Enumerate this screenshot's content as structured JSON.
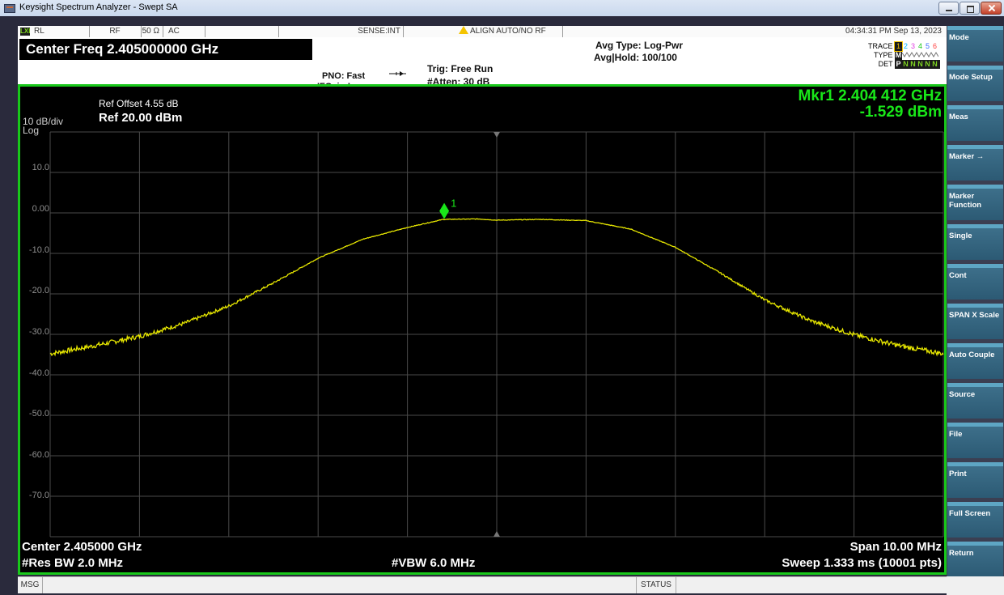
{
  "window": {
    "title": "Keysight Spectrum Analyzer - Swept SA"
  },
  "status_row": {
    "rl_icon": "LXI",
    "rl": "RL",
    "rf": "RF",
    "impedance": "50 Ω",
    "coupling": "AC",
    "sense": "SENSE:INT",
    "align": "ALIGN AUTO/NO RF",
    "datetime": "04:34:31 PM Sep 13, 2023"
  },
  "settings": {
    "center_freq": "Center Freq 2.405000000 GHz",
    "pno": "PNO: Fast",
    "ifgain": "IFGain:Low",
    "trig": "Trig: Free Run",
    "atten": "#Atten: 30 dB",
    "avg_type": "Avg Type: Log-Pwr",
    "avg_hold": "Avg|Hold: 100/100",
    "trace_label": "TRACE",
    "type_label": "TYPE",
    "det_label": "DET",
    "trace_numbers": [
      "1",
      "2",
      "3",
      "4",
      "5",
      "6"
    ],
    "type_values": "M",
    "det_values": [
      "P",
      "N",
      "N",
      "N",
      "N",
      "N"
    ]
  },
  "graph": {
    "ref_offset": "Ref Offset 4.55 dB",
    "scale": "10 dB/div",
    "scale_type": "Log",
    "ref_level": "Ref 20.00 dBm",
    "marker_freq": "Mkr1 2.404 412 GHz",
    "marker_level": "-1.529 dBm",
    "marker_number": "1",
    "y_tick_labels": [
      "10.0",
      "0.00",
      "-10.0",
      "-20.0",
      "-30.0",
      "-40.0",
      "-50.0",
      "-60.0",
      "-70.0"
    ],
    "center": "Center 2.405000 GHz",
    "span": "Span 10.00 MHz",
    "res_bw": "#Res BW 2.0 MHz",
    "vbw": "#VBW 6.0 MHz",
    "sweep": "Sweep  1.333 ms (10001 pts)",
    "colors": {
      "trace": "#e6e600",
      "marker": "#19e619",
      "frame": "#18c81a",
      "grid": "#4a4a4a"
    }
  },
  "chart_data": {
    "type": "line",
    "x_unit": "GHz",
    "y_unit": "dBm",
    "xlim": [
      2.4,
      2.41
    ],
    "ylim": [
      -80,
      20
    ],
    "grid": true,
    "series": [
      {
        "x": [
          2.4,
          2.4005,
          2.401,
          2.4015,
          2.402,
          2.4025,
          2.403,
          2.4035,
          2.404,
          2.4044,
          2.4048,
          2.405,
          2.4055,
          2.406,
          2.4065,
          2.407,
          2.4075,
          2.408,
          2.4085,
          2.409,
          2.4095,
          2.41
        ],
        "y": [
          -34.8,
          -32.8,
          -30.5,
          -27.3,
          -23.0,
          -17.3,
          -11.2,
          -6.5,
          -3.6,
          -1.6,
          -1.5,
          -1.8,
          -1.6,
          -1.9,
          -4.0,
          -8.5,
          -14.8,
          -21.5,
          -26.5,
          -30.1,
          -32.8,
          -34.8
        ]
      }
    ],
    "marker": {
      "label": "1",
      "x": 2.404412,
      "y": -1.529
    }
  },
  "softkeys": [
    {
      "label": "Mode"
    },
    {
      "label": "Mode Setup"
    },
    {
      "label": "Meas"
    },
    {
      "label": "Marker →"
    },
    {
      "label": "Marker Function"
    },
    {
      "label": "Single"
    },
    {
      "label": "Cont"
    },
    {
      "label": "SPAN X Scale"
    },
    {
      "label": "Auto Couple"
    },
    {
      "label": "Source"
    },
    {
      "label": "File"
    },
    {
      "label": "Print"
    },
    {
      "label": "Full Screen"
    },
    {
      "label": "Return"
    }
  ],
  "bottom": {
    "msg": "MSG",
    "status": "STATUS"
  }
}
